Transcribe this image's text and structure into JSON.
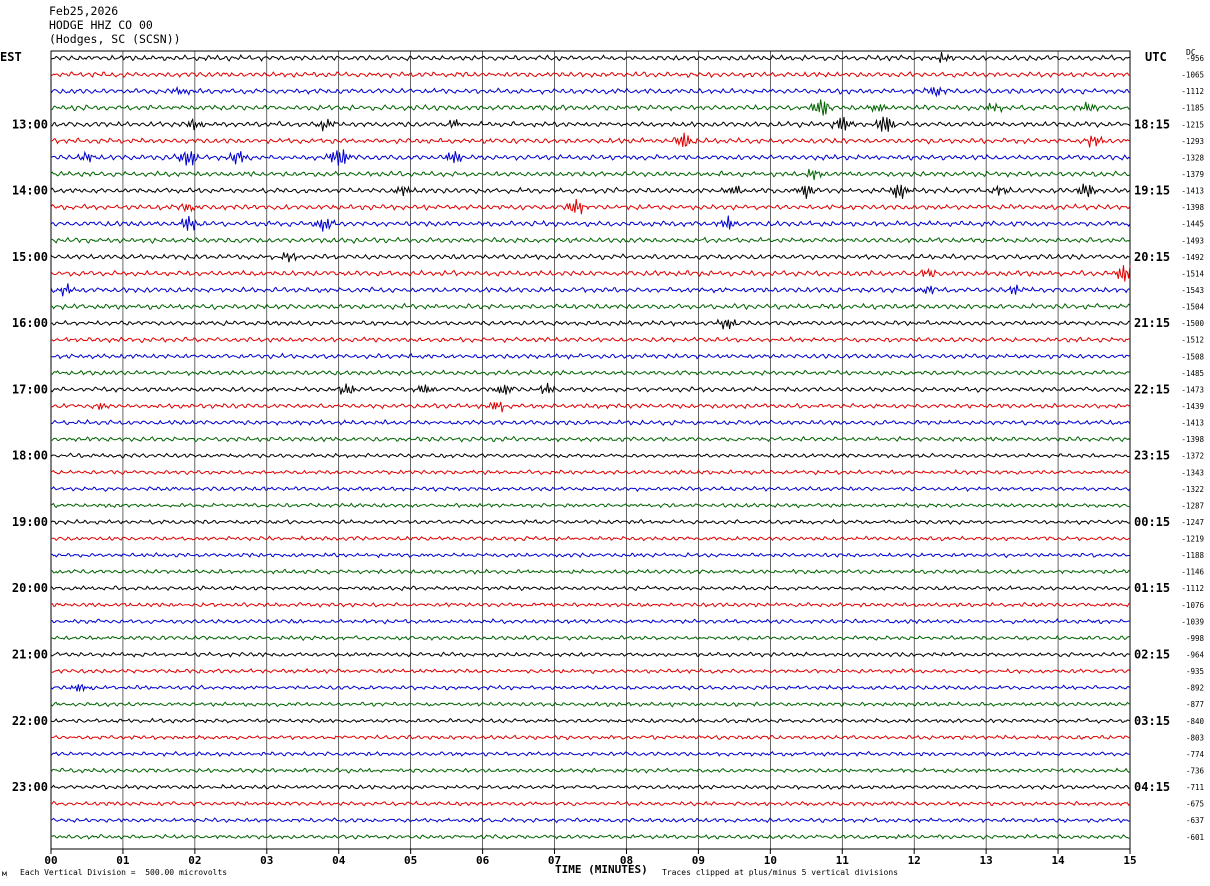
{
  "header": {
    "date": "Feb25,2026",
    "station": "HODGE HHZ CO 00",
    "location": "(Hodges, SC (SCSN))"
  },
  "left_axis_label": "EST",
  "right_axis_label": "UTC",
  "dc_label": "DC",
  "footer": {
    "scale_note": "Each Vertical Division =  500.00 microvolts",
    "xlabel": "TIME (MINUTES)",
    "clip_note": "Traces clipped at plus/minus 5 vertical divisions",
    "corner_mark": "м"
  },
  "colors": {
    "trace_cycle": [
      "#000000",
      "#e00000",
      "#0000d0",
      "#006400"
    ],
    "grid": "#000000"
  },
  "chart_data": {
    "type": "line",
    "title": "HODGE HHZ CO 00",
    "xlabel": "TIME (MINUTES)",
    "ylabel": "",
    "xlim": [
      0,
      15
    ],
    "x_ticks": [
      "00",
      "01",
      "02",
      "03",
      "04",
      "05",
      "06",
      "07",
      "08",
      "09",
      "10",
      "11",
      "12",
      "13",
      "14",
      "15"
    ],
    "rows": 48,
    "row_minutes": 15,
    "left_hour_labels": [
      "13:00",
      "14:00",
      "15:00",
      "16:00",
      "17:00",
      "18:00",
      "19:00",
      "20:00",
      "21:00",
      "22:00",
      "23:00"
    ],
    "right_hour_labels": [
      "18:15",
      "19:15",
      "20:15",
      "21:15",
      "22:15",
      "23:15",
      "00:15",
      "01:15",
      "02:15",
      "03:15",
      "04:15"
    ],
    "dc_offsets": [
      "-956",
      "-1065",
      "-1112",
      "-1185",
      "-1215",
      "-1293",
      "-1328",
      "-1379",
      "-1413",
      "-1398",
      "-1445",
      "-1493",
      "-1492",
      "-1514",
      "-1543",
      "-1504",
      "-1500",
      "-1512",
      "-1508",
      "-1485",
      "-1473",
      "-1439",
      "-1413",
      "-1398",
      "-1372",
      "-1343",
      "-1322",
      "-1287",
      "-1247",
      "-1219",
      "-1188",
      "-1146",
      "-1112",
      "-1076",
      "-1039",
      "-998",
      "-964",
      "-935",
      "-892",
      "-877",
      "-840",
      "-803",
      "-774",
      "-736",
      "-711",
      "-675",
      "-637",
      "-601"
    ],
    "trace_color_cycle": [
      "black",
      "red",
      "blue",
      "green"
    ],
    "grid": true,
    "clip_divisions": 5,
    "vertical_division_microvolts": 500.0,
    "events": [
      {
        "row": 0,
        "t": 12.4,
        "amp": 1.2
      },
      {
        "row": 2,
        "t": 1.8,
        "amp": 1.2
      },
      {
        "row": 2,
        "t": 12.3,
        "amp": 1.4
      },
      {
        "row": 3,
        "t": 10.7,
        "amp": 2.6
      },
      {
        "row": 3,
        "t": 11.5,
        "amp": 1.3
      },
      {
        "row": 3,
        "t": 13.1,
        "amp": 1.0
      },
      {
        "row": 3,
        "t": 14.4,
        "amp": 1.4
      },
      {
        "row": 4,
        "t": 2.0,
        "amp": 1.2
      },
      {
        "row": 4,
        "t": 3.8,
        "amp": 1.4
      },
      {
        "row": 4,
        "t": 5.6,
        "amp": 1.2
      },
      {
        "row": 4,
        "t": 11.0,
        "amp": 2.0
      },
      {
        "row": 4,
        "t": 11.6,
        "amp": 2.6
      },
      {
        "row": 5,
        "t": 8.8,
        "amp": 2.0
      },
      {
        "row": 5,
        "t": 14.5,
        "amp": 1.6
      },
      {
        "row": 6,
        "t": 0.5,
        "amp": 1.4
      },
      {
        "row": 6,
        "t": 1.9,
        "amp": 3.0
      },
      {
        "row": 6,
        "t": 2.6,
        "amp": 1.8
      },
      {
        "row": 6,
        "t": 4.0,
        "amp": 3.2
      },
      {
        "row": 6,
        "t": 5.6,
        "amp": 1.6
      },
      {
        "row": 7,
        "t": 10.6,
        "amp": 1.2
      },
      {
        "row": 8,
        "t": 4.9,
        "amp": 1.6
      },
      {
        "row": 8,
        "t": 9.5,
        "amp": 1.6
      },
      {
        "row": 8,
        "t": 10.5,
        "amp": 2.2
      },
      {
        "row": 8,
        "t": 11.8,
        "amp": 2.4
      },
      {
        "row": 8,
        "t": 13.2,
        "amp": 1.4
      },
      {
        "row": 8,
        "t": 14.4,
        "amp": 2.0
      },
      {
        "row": 9,
        "t": 1.9,
        "amp": 1.2
      },
      {
        "row": 9,
        "t": 7.3,
        "amp": 2.2
      },
      {
        "row": 10,
        "t": 1.9,
        "amp": 2.0
      },
      {
        "row": 10,
        "t": 3.8,
        "amp": 2.2
      },
      {
        "row": 10,
        "t": 9.4,
        "amp": 2.4
      },
      {
        "row": 12,
        "t": 3.3,
        "amp": 1.2
      },
      {
        "row": 13,
        "t": 12.2,
        "amp": 1.2
      },
      {
        "row": 13,
        "t": 14.95,
        "amp": 3.0
      },
      {
        "row": 14,
        "t": 0.2,
        "amp": 1.4
      },
      {
        "row": 14,
        "t": 12.2,
        "amp": 1.2
      },
      {
        "row": 14,
        "t": 13.4,
        "amp": 1.4
      },
      {
        "row": 16,
        "t": 9.4,
        "amp": 1.6
      },
      {
        "row": 20,
        "t": 4.1,
        "amp": 1.6
      },
      {
        "row": 20,
        "t": 5.2,
        "amp": 1.2
      },
      {
        "row": 20,
        "t": 6.3,
        "amp": 2.0
      },
      {
        "row": 20,
        "t": 6.9,
        "amp": 1.4
      },
      {
        "row": 21,
        "t": 0.7,
        "amp": 1.0
      },
      {
        "row": 21,
        "t": 6.2,
        "amp": 1.6
      },
      {
        "row": 38,
        "t": 0.4,
        "amp": 1.4
      }
    ]
  }
}
